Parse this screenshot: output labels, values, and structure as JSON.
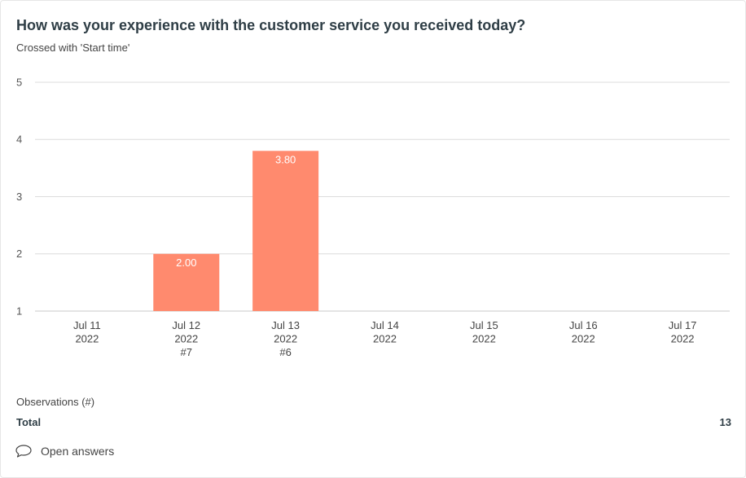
{
  "header": {
    "title": "How was your experience with the customer service you received today?",
    "subtitle": "Crossed with 'Start time'"
  },
  "chart_data": {
    "type": "bar",
    "categories": [
      {
        "line1": "Jul 11",
        "line2": "2022",
        "count": ""
      },
      {
        "line1": "Jul 12",
        "line2": "2022",
        "count": "#7"
      },
      {
        "line1": "Jul 13",
        "line2": "2022",
        "count": "#6"
      },
      {
        "line1": "Jul 14",
        "line2": "2022",
        "count": ""
      },
      {
        "line1": "Jul 15",
        "line2": "2022",
        "count": ""
      },
      {
        "line1": "Jul 16",
        "line2": "2022",
        "count": ""
      },
      {
        "line1": "Jul 17",
        "line2": "2022",
        "count": ""
      }
    ],
    "values": [
      null,
      2.0,
      3.8,
      null,
      null,
      null,
      null
    ],
    "value_labels": [
      "",
      "2.00",
      "3.80",
      "",
      "",
      "",
      ""
    ],
    "ylim": [
      1,
      5
    ],
    "yticks": [
      "1",
      "2",
      "3",
      "4",
      "5"
    ],
    "grid": true,
    "bar_color": "#ff8a6e"
  },
  "footer": {
    "observations_label": "Observations (#)",
    "total_label": "Total",
    "total_value": "13",
    "open_answers_label": "Open answers",
    "open_answers_icon": "speech-bubble-icon"
  }
}
